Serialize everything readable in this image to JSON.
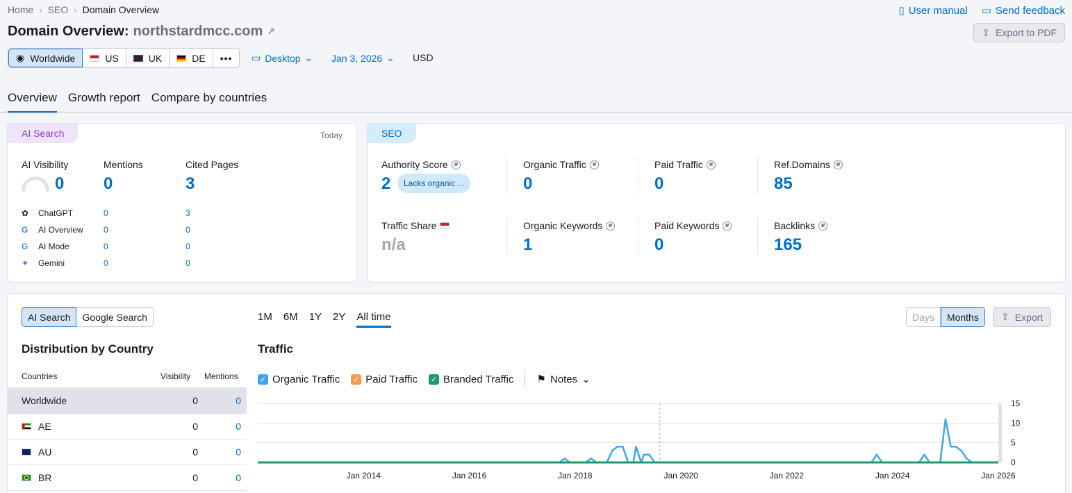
{
  "breadcrumb": [
    "Home",
    "SEO",
    "Domain Overview"
  ],
  "links": {
    "manual": "User manual",
    "feedback": "Send feedback"
  },
  "title": {
    "prefix": "Domain Overview:",
    "domain": "northstardmcc.com"
  },
  "export_pdf": "Export to PDF",
  "regions": [
    "Worldwide",
    "US",
    "UK",
    "DE"
  ],
  "device": "Desktop",
  "date": "Jan 3, 2026",
  "currency": "USD",
  "tabs": [
    "Overview",
    "Growth report",
    "Compare by countries"
  ],
  "ai": {
    "badge": "AI Search",
    "today": "Today",
    "vis_label": "AI Visibility",
    "vis": "0",
    "men_label": "Mentions",
    "men": "0",
    "cited_label": "Cited Pages",
    "cited": "3",
    "rows": [
      {
        "name": "ChatGPT",
        "m": "0",
        "c": "3"
      },
      {
        "name": "AI Overview",
        "m": "0",
        "c": "0"
      },
      {
        "name": "AI Mode",
        "m": "0",
        "c": "0"
      },
      {
        "name": "Gemini",
        "m": "0",
        "c": "0"
      }
    ]
  },
  "seo": {
    "badge": "SEO",
    "auth_label": "Authority Score",
    "auth": "2",
    "auth_tag": "Lacks organic ...",
    "ot_label": "Organic Traffic",
    "ot": "0",
    "pt_label": "Paid Traffic",
    "pt": "0",
    "rd_label": "Ref.Domains",
    "rd": "85",
    "ts_label": "Traffic Share",
    "ts": "n/a",
    "ok_label": "Organic Keywords",
    "ok": "1",
    "pk_label": "Paid Keywords",
    "pk": "0",
    "bl_label": "Backlinks",
    "bl": "165"
  },
  "lower": {
    "toggle": [
      "AI Search",
      "Google Search"
    ],
    "periods": [
      "1M",
      "6M",
      "1Y",
      "2Y",
      "All time"
    ],
    "days": "Days",
    "months": "Months",
    "export": "Export",
    "dist_title": "Distribution by Country",
    "cols": [
      "Countries",
      "Visibility",
      "Mentions"
    ],
    "countries": [
      {
        "name": "Worldwide",
        "v": "0",
        "m": "0"
      },
      {
        "name": "AE",
        "v": "0",
        "m": "0"
      },
      {
        "name": "AU",
        "v": "0",
        "m": "0"
      },
      {
        "name": "BR",
        "v": "0",
        "m": "0"
      }
    ],
    "traffic_title": "Traffic",
    "legend": [
      "Organic Traffic",
      "Paid Traffic",
      "Branded Traffic"
    ],
    "notes": "Notes"
  },
  "chart_data": {
    "type": "line",
    "ylim": [
      0,
      15
    ],
    "yticks": [
      "15",
      "10",
      "5",
      "0"
    ],
    "xticks": [
      "Jan 2014",
      "Jan 2016",
      "Jan 2018",
      "Jan 2020",
      "Jan 2022",
      "Jan 2024",
      "Jan 2026"
    ],
    "series": [
      {
        "name": "Organic Traffic",
        "color": "#3ea6e8",
        "points": [
          [
            2012.0,
            0
          ],
          [
            2017.7,
            0
          ],
          [
            2017.8,
            1
          ],
          [
            2017.9,
            0
          ],
          [
            2018.2,
            0
          ],
          [
            2018.3,
            1
          ],
          [
            2018.4,
            0
          ],
          [
            2018.6,
            0
          ],
          [
            2018.7,
            3
          ],
          [
            2018.8,
            4
          ],
          [
            2018.9,
            4
          ],
          [
            2019.0,
            0
          ],
          [
            2019.1,
            0
          ],
          [
            2019.15,
            4
          ],
          [
            2019.25,
            0
          ],
          [
            2019.3,
            2
          ],
          [
            2019.4,
            2
          ],
          [
            2019.5,
            0
          ],
          [
            2023.6,
            0
          ],
          [
            2023.7,
            2
          ],
          [
            2023.8,
            0
          ],
          [
            2024.5,
            0
          ],
          [
            2024.6,
            2
          ],
          [
            2024.7,
            0
          ],
          [
            2024.9,
            0
          ],
          [
            2025.0,
            11
          ],
          [
            2025.1,
            4
          ],
          [
            2025.2,
            4
          ],
          [
            2025.3,
            3
          ],
          [
            2025.4,
            1
          ],
          [
            2025.5,
            0
          ],
          [
            2026.0,
            0
          ]
        ]
      },
      {
        "name": "Branded Traffic",
        "color": "#1a9c6a",
        "points": [
          [
            2012.0,
            0
          ],
          [
            2026.0,
            0
          ]
        ]
      }
    ]
  }
}
